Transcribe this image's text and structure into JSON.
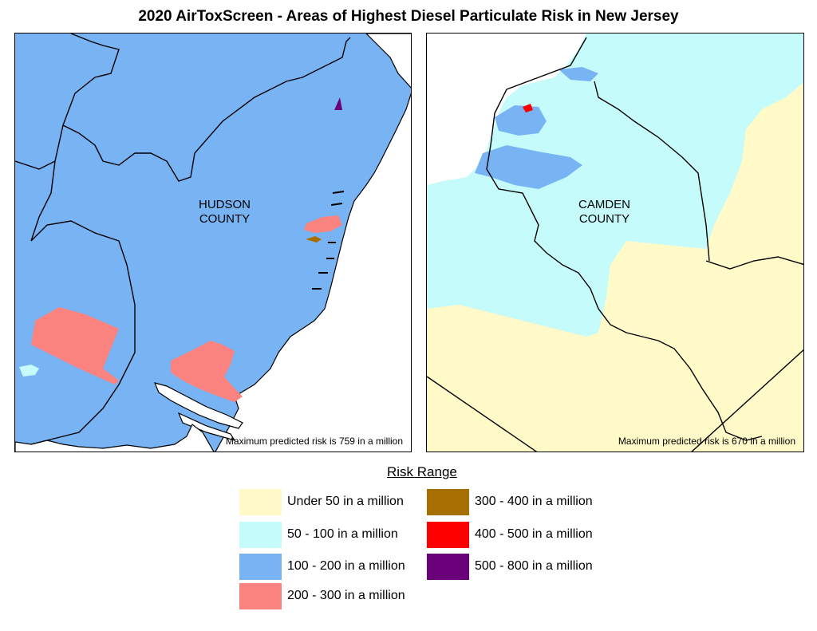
{
  "title": "2020 AirToxScreen - Areas of Highest Diesel Particulate Risk in New Jersey",
  "panels": {
    "hudson": {
      "county_line1": "HUDSON",
      "county_line2": "COUNTY",
      "max_note": "Maximum predicted risk is 759 in a million"
    },
    "camden": {
      "county_line1": "CAMDEN",
      "county_line2": "COUNTY",
      "max_note": "Maximum predicted risk is 670 in a million"
    }
  },
  "colors": {
    "under50": "#fffac8",
    "r50_100": "#c5fbfb",
    "r100_200": "#78b3f3",
    "r200_300": "#fa8380",
    "r300_400": "#a66f00",
    "r400_500": "#ff0000",
    "r500_800": "#6a007a"
  },
  "legend": {
    "title": "Risk Range",
    "items": [
      {
        "label": "Under 50 in a million",
        "color": "#fffac8"
      },
      {
        "label": "50 - 100 in a million",
        "color": "#c5fbfb"
      },
      {
        "label": "100 - 200 in a million",
        "color": "#78b3f3"
      },
      {
        "label": "200 - 300 in a million",
        "color": "#fa8380"
      },
      {
        "label": "300 - 400 in a million",
        "color": "#a66f00"
      },
      {
        "label": "400 - 500 in a million",
        "color": "#ff0000"
      },
      {
        "label": "500 - 800 in a million",
        "color": "#6a007a"
      }
    ]
  }
}
